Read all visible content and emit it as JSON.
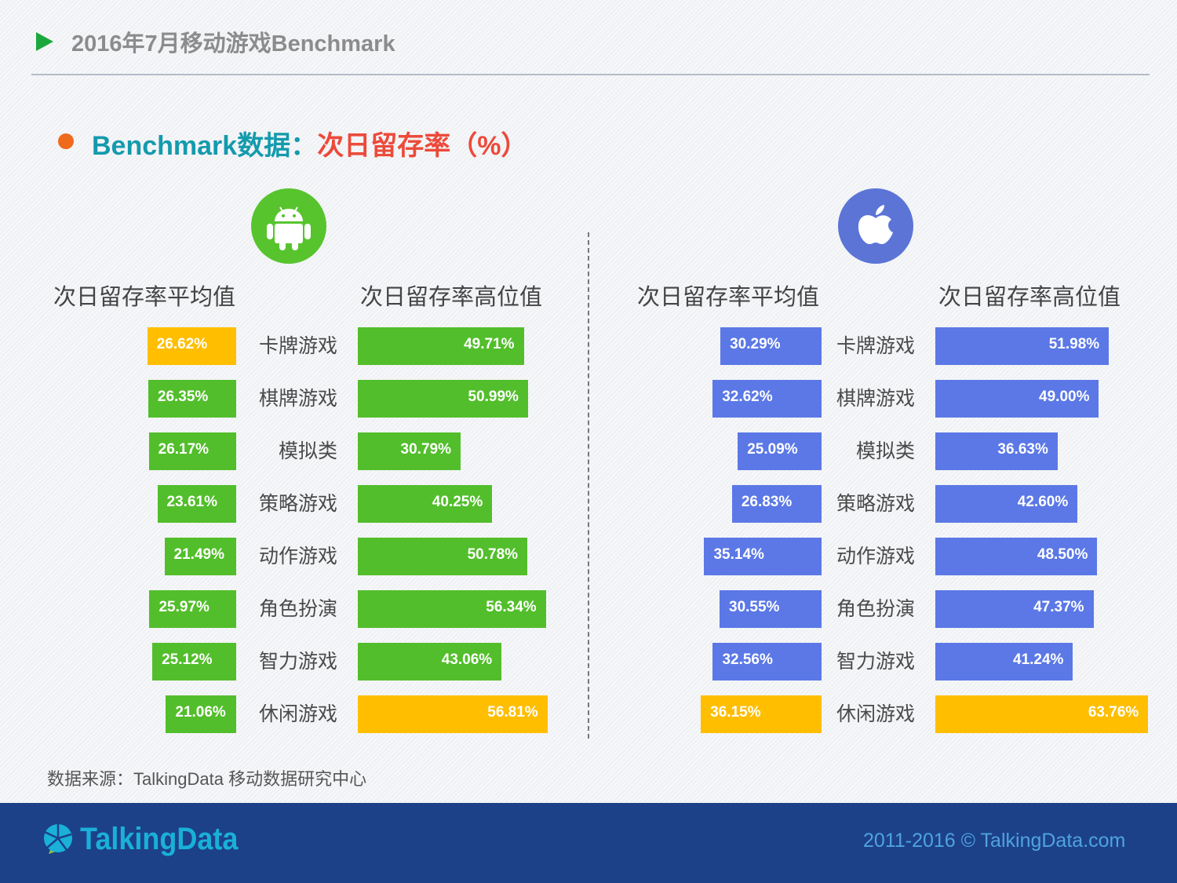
{
  "header": {
    "title": "2016年7月移动游戏Benchmark"
  },
  "subtitle": {
    "part1": "Benchmark数据：",
    "part2": "次日留存率（%）"
  },
  "android": {
    "avg_header": "次日留存率平均值",
    "high_header": "次日留存率高位值"
  },
  "ios": {
    "avg_header": "次日留存率平均值",
    "high_header": "次日留存率高位值"
  },
  "colors": {
    "android": "#52be2b",
    "ios": "#5b78e6",
    "highlight": "#ffbe00"
  },
  "chart_data": [
    {
      "type": "bar",
      "platform": "android",
      "categories": [
        "卡牌游戏",
        "棋牌游戏",
        "模拟类",
        "策略游戏",
        "动作游戏",
        "角色扮演",
        "智力游戏",
        "休闲游戏"
      ],
      "series": [
        {
          "name": "次日留存率平均值",
          "values": [
            26.62,
            26.35,
            26.17,
            23.61,
            21.49,
            25.97,
            25.12,
            21.06
          ],
          "labels": [
            "26.62%",
            "26.35%",
            "26.17%",
            "23.61%",
            "21.49%",
            "25.97%",
            "25.12%",
            "21.06%"
          ],
          "highlight_index": 0
        },
        {
          "name": "次日留存率高位值",
          "values": [
            49.71,
            50.99,
            30.79,
            40.25,
            50.78,
            56.34,
            43.06,
            56.81
          ],
          "labels": [
            "49.71%",
            "50.99%",
            "30.79%",
            "40.25%",
            "50.78%",
            "56.34%",
            "43.06%",
            "56.81%"
          ],
          "highlight_index": 7
        }
      ]
    },
    {
      "type": "bar",
      "platform": "ios",
      "categories": [
        "卡牌游戏",
        "棋牌游戏",
        "模拟类",
        "策略游戏",
        "动作游戏",
        "角色扮演",
        "智力游戏",
        "休闲游戏"
      ],
      "series": [
        {
          "name": "次日留存率平均值",
          "values": [
            30.29,
            32.62,
            25.09,
            26.83,
            35.14,
            30.55,
            32.56,
            36.15
          ],
          "labels": [
            "30.29%",
            "32.62%",
            "25.09%",
            "26.83%",
            "35.14%",
            "30.55%",
            "32.56%",
            "36.15%"
          ],
          "highlight_index": 7
        },
        {
          "name": "次日留存率高位值",
          "values": [
            51.98,
            49.0,
            36.63,
            42.6,
            48.5,
            47.37,
            41.24,
            63.76
          ],
          "labels": [
            "51.98%",
            "49.00%",
            "36.63%",
            "42.60%",
            "48.50%",
            "47.37%",
            "41.24%",
            "63.76%"
          ],
          "highlight_index": 7
        }
      ]
    }
  ],
  "source": "数据来源：TalkingData 移动数据研究中心",
  "footer": {
    "logo_text": "TalkingData",
    "copyright": "2011-2016 © TalkingData.com"
  }
}
